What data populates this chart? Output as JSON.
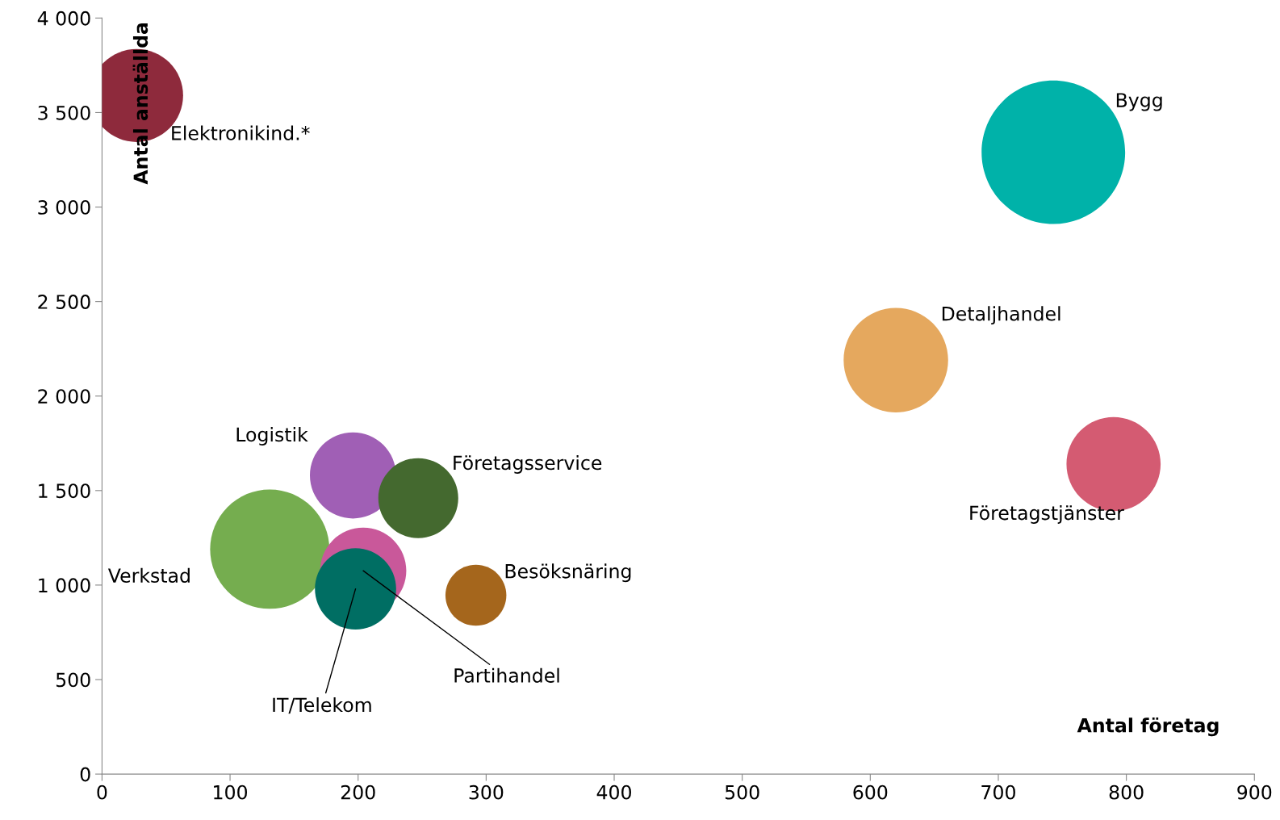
{
  "chart_data": {
    "type": "bubble",
    "xlabel": "Antal företag",
    "ylabel": "Antal anställda",
    "xlim": [
      0,
      900
    ],
    "xticks": [
      0,
      100,
      200,
      300,
      400,
      500,
      600,
      700,
      800,
      900
    ],
    "ylim": [
      0,
      4000
    ],
    "yticks": [
      0,
      500,
      {
        "value": 1000,
        "label": "1 000"
      },
      {
        "value": 1500,
        "label": "1 500"
      },
      {
        "value": 2000,
        "label": "2 000"
      },
      {
        "value": 2500,
        "label": "2 500"
      },
      {
        "value": 3000,
        "label": "3 000"
      },
      {
        "value": 3500,
        "label": "3 500"
      },
      {
        "value": 4000,
        "label": "4 000"
      }
    ],
    "grid": false,
    "legend": false,
    "series": [
      {
        "name": "Bygg",
        "color": "#00b2a9",
        "x": [
          743
        ],
        "values": [
          3290
        ],
        "sizes": [
          1
        ]
      },
      {
        "name": "Detaljhandel",
        "color": "#e5a85e",
        "x": [
          620
        ],
        "values": [
          2190
        ],
        "sizes": [
          0.53
        ]
      },
      {
        "name": "Företagstjänster",
        "color": "#d45b72",
        "x": [
          790
        ],
        "values": [
          1640
        ],
        "sizes": [
          0.43
        ]
      },
      {
        "name": "Verkstad",
        "color": "#75ad4f",
        "x": [
          131
        ],
        "values": [
          1190
        ],
        "sizes": [
          0.69
        ]
      },
      {
        "name": "Logistik",
        "color": "#a05fb5",
        "x": [
          196
        ],
        "values": [
          1580
        ],
        "sizes": [
          0.36
        ]
      },
      {
        "name": "Företagsservice",
        "color": "#44692f",
        "x": [
          247
        ],
        "values": [
          1460
        ],
        "sizes": [
          0.31
        ]
      },
      {
        "name": "Partihandel",
        "color": "#c9589a",
        "x": [
          204
        ],
        "values": [
          1076
        ],
        "sizes": [
          0.36
        ]
      },
      {
        "name": "IT/Telekom",
        "color": "#006e63",
        "x": [
          198
        ],
        "values": [
          980
        ],
        "sizes": [
          0.32
        ]
      },
      {
        "name": "Besöksnäring",
        "color": "#a5661c",
        "x": [
          292
        ],
        "values": [
          946
        ],
        "sizes": [
          0.18
        ]
      },
      {
        "name": "Elektronikind.*",
        "color": "#8e2a3c",
        "x": [
          27
        ],
        "values": [
          3590
        ],
        "sizes": [
          0.42
        ]
      }
    ]
  }
}
